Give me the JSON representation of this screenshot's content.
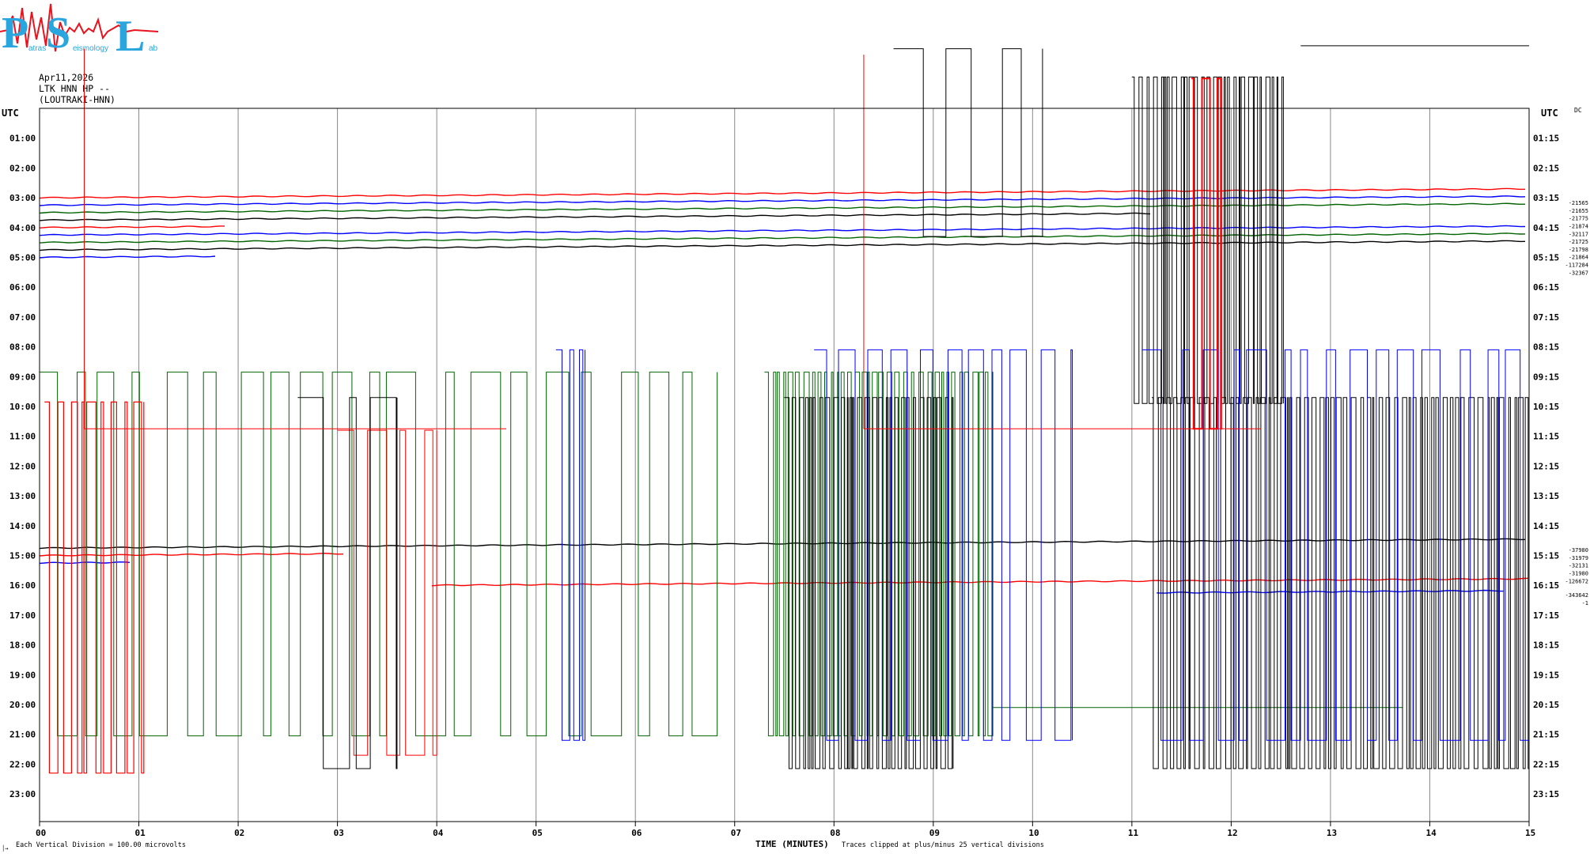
{
  "logo": {
    "letter_p": "P",
    "letter_s": "S",
    "letter_l": "L",
    "word_1": "atras",
    "word_2": "eismology",
    "word_3": "ab"
  },
  "header": {
    "date": "Apr11,2026",
    "station": "LTK HNN HP --",
    "location": "(LOUTRAKI-HNN)"
  },
  "labels": {
    "utc_left": "UTC",
    "utc_right": "UTC",
    "dc": "DC",
    "xlabel": "TIME (MINUTES)",
    "clip_note": "Traces clipped at plus/minus 25 vertical divisions",
    "scale_note": "Each Vertical Division =  100.00 microvolts",
    "corner": "│→"
  },
  "chart_data": {
    "type": "line",
    "title": "LTK HNN HP --",
    "xlabel": "TIME (MINUTES)",
    "xlim": [
      0,
      15
    ],
    "x_ticks": [
      "00",
      "01",
      "02",
      "03",
      "04",
      "05",
      "06",
      "07",
      "08",
      "09",
      "10",
      "11",
      "12",
      "13",
      "14",
      "15"
    ],
    "left_hours": [
      "01:00",
      "02:00",
      "03:00",
      "04:00",
      "05:00",
      "06:00",
      "07:00",
      "08:00",
      "09:00",
      "10:00",
      "11:00",
      "12:00",
      "13:00",
      "14:00",
      "15:00",
      "16:00",
      "17:00",
      "18:00",
      "19:00",
      "20:00",
      "21:00",
      "22:00",
      "23:00"
    ],
    "right_hours": [
      "01:15",
      "02:15",
      "03:15",
      "04:15",
      "05:15",
      "06:15",
      "07:15",
      "08:15",
      "09:15",
      "10:15",
      "11:15",
      "12:15",
      "13:15",
      "14:15",
      "15:15",
      "16:15",
      "17:15",
      "18:15",
      "19:15",
      "20:15",
      "21:15",
      "22:15",
      "23:15"
    ],
    "dc_values_a": [
      "-21565",
      "-21655",
      "-21775",
      "-21874",
      "-32117",
      "-21725",
      "-21798",
      "-21864",
      "-117284",
      "-32367"
    ],
    "dc_values_b": [
      "-37980",
      "-31979",
      "-32131",
      "-31980",
      "-126672",
      "-343642",
      "-1"
    ],
    "series_colors": [
      "#000000",
      "#ff0000",
      "#0000ff",
      "#006400"
    ],
    "traces": [
      {
        "row": 3.0,
        "color": "#ff0000",
        "x0": 0.0,
        "x1": 15.0
      },
      {
        "row": 3.25,
        "color": "#0000ff",
        "x0": 0.0,
        "x1": 15.0
      },
      {
        "row": 3.5,
        "color": "#006400",
        "x0": 0.0,
        "x1": 15.0
      },
      {
        "row": 3.75,
        "color": "#000000",
        "x0": 0.0,
        "x1": 11.2
      },
      {
        "row": 4.0,
        "color": "#ff0000",
        "x0": 0.0,
        "x1": 1.9
      },
      {
        "row": 4.25,
        "color": "#0000ff",
        "x0": 0.0,
        "x1": 15.0
      },
      {
        "row": 4.5,
        "color": "#006400",
        "x0": 0.0,
        "x1": 15.0
      },
      {
        "row": 4.75,
        "color": "#000000",
        "x0": 0.0,
        "x1": 15.0
      },
      {
        "row": 5.0,
        "color": "#0000ff",
        "x0": 0.0,
        "x1": 1.8
      },
      {
        "row": 14.75,
        "color": "#000000",
        "x0": 0.0,
        "x1": 15.0
      },
      {
        "row": 15.0,
        "color": "#ff0000",
        "x0": 0.0,
        "x1": 3.1
      },
      {
        "row": 15.25,
        "color": "#0000ff",
        "x0": 0.0,
        "x1": 0.95
      },
      {
        "row": 16.0,
        "color": "#ff0000",
        "x0": 3.95,
        "x1": 15.0
      },
      {
        "row": 16.25,
        "color": "#0000ff",
        "x0": 11.25,
        "x1": 14.75
      }
    ]
  }
}
